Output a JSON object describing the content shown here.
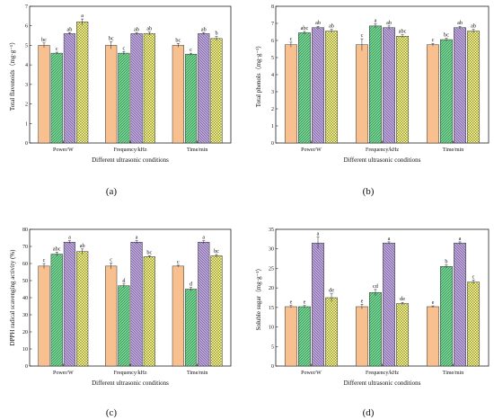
{
  "panel_labels": [
    "(a)",
    "(b)",
    "(c)",
    "(d)"
  ],
  "colors": {
    "series": [
      "#f9c08f",
      "#6fd28f",
      "#b9a3d9",
      "#f4f48a"
    ],
    "hatch": [
      "none",
      "diag-left",
      "diag-right",
      "cross"
    ],
    "axis": "#222222"
  },
  "chart_data": [
    {
      "type": "bar",
      "title": "",
      "categories": [
        "Power/W",
        "Frequency/kHz",
        "Time/min"
      ],
      "xlabel": "Different ultrasonic conditions",
      "ylabel": "Total flavonoids（mg·g⁻¹）",
      "ylim": [
        0,
        7
      ],
      "yticks": [
        0,
        1,
        2,
        3,
        4,
        5,
        6,
        7
      ],
      "series": [
        {
          "values": [
            5.0,
            5.0,
            5.0
          ],
          "errors": [
            0.12,
            0.18,
            0.1
          ],
          "labels": [
            "bc",
            "bc",
            "bc"
          ]
        },
        {
          "values": [
            4.6,
            4.6,
            4.55
          ],
          "errors": [
            0.05,
            0.08,
            0.05
          ],
          "labels": [
            "c",
            "c",
            "c"
          ]
        },
        {
          "values": [
            5.6,
            5.6,
            5.6
          ],
          "errors": [
            0.05,
            0.05,
            0.05
          ],
          "labels": [
            "ab",
            "ab",
            "ab"
          ]
        },
        {
          "values": [
            6.2,
            5.6,
            5.35
          ],
          "errors": [
            0.15,
            0.08,
            0.1
          ],
          "labels": [
            "a",
            "ab",
            "b"
          ]
        }
      ]
    },
    {
      "type": "bar",
      "title": "",
      "categories": [
        "Power/W",
        "Frequency/kHz",
        "Time/min"
      ],
      "xlabel": "Different ultrasonic conditions",
      "ylabel": "Total phenols（mg·g⁻¹）",
      "ylim": [
        0,
        8
      ],
      "yticks": [
        0,
        1,
        2,
        3,
        4,
        5,
        6,
        7,
        8
      ],
      "series": [
        {
          "values": [
            5.75,
            5.75,
            5.75
          ],
          "errors": [
            0.15,
            0.35,
            0.08
          ],
          "labels": [
            "c",
            "c",
            "c"
          ]
        },
        {
          "values": [
            6.45,
            6.85,
            6.05
          ],
          "errors": [
            0.08,
            0.12,
            0.08
          ],
          "labels": [
            "abc",
            "a",
            "bc"
          ]
        },
        {
          "values": [
            6.75,
            6.75,
            6.75
          ],
          "errors": [
            0.08,
            0.1,
            0.08
          ],
          "labels": [
            "ab",
            "ab",
            "ab"
          ]
        },
        {
          "values": [
            6.55,
            6.25,
            6.55
          ],
          "errors": [
            0.1,
            0.08,
            0.1
          ],
          "labels": [
            "ab",
            "abc",
            "ab"
          ]
        }
      ]
    },
    {
      "type": "bar",
      "title": "",
      "categories": [
        "Power/W",
        "Frequency/kHz",
        "Time/min"
      ],
      "xlabel": "Different ultrasonic conditions",
      "ylabel": "DPPH radical scavenging activity (%)",
      "ylim": [
        0,
        80
      ],
      "yticks": [
        0,
        10,
        20,
        30,
        40,
        50,
        60,
        70,
        80
      ],
      "series": [
        {
          "values": [
            58.5,
            58.5,
            58.5
          ],
          "errors": [
            1.5,
            1.8,
            0.5
          ],
          "labels": [
            "c",
            "c",
            "c"
          ]
        },
        {
          "values": [
            65.5,
            47.0,
            45.0
          ],
          "errors": [
            1.2,
            1.0,
            1.0
          ],
          "labels": [
            "abc",
            "d",
            "d"
          ]
        },
        {
          "values": [
            72.5,
            72.5,
            72.5
          ],
          "errors": [
            0.8,
            0.8,
            0.8
          ],
          "labels": [
            "a",
            "a",
            "a"
          ]
        },
        {
          "values": [
            67.0,
            64.0,
            64.5
          ],
          "errors": [
            1.5,
            0.6,
            0.8
          ],
          "labels": [
            "ab",
            "bc",
            "bc"
          ]
        }
      ]
    },
    {
      "type": "bar",
      "title": "",
      "categories": [
        "Power/W",
        "Frequency/kHz",
        "Time/min"
      ],
      "xlabel": "Different ultrasonic conditions",
      "ylabel": "Soluble sugar（mg·g⁻¹）",
      "ylim": [
        0,
        35
      ],
      "yticks": [
        0,
        5,
        10,
        15,
        20,
        25,
        30,
        35
      ],
      "series": [
        {
          "values": [
            15.2,
            15.2,
            15.2
          ],
          "errors": [
            0.3,
            0.6,
            0.2
          ],
          "labels": [
            "e",
            "e",
            "e"
          ]
        },
        {
          "values": [
            15.2,
            18.8,
            25.5
          ],
          "errors": [
            0.3,
            0.8,
            0.4
          ],
          "labels": [
            "e",
            "cd",
            "b"
          ]
        },
        {
          "values": [
            31.5,
            31.5,
            31.5
          ],
          "errors": [
            1.5,
            0.3,
            0.3
          ],
          "labels": [
            "a",
            "a",
            "a"
          ]
        },
        {
          "values": [
            17.5,
            16.0,
            21.5
          ],
          "errors": [
            1.0,
            0.3,
            0.5
          ],
          "labels": [
            "de",
            "de",
            "c"
          ]
        }
      ]
    }
  ]
}
